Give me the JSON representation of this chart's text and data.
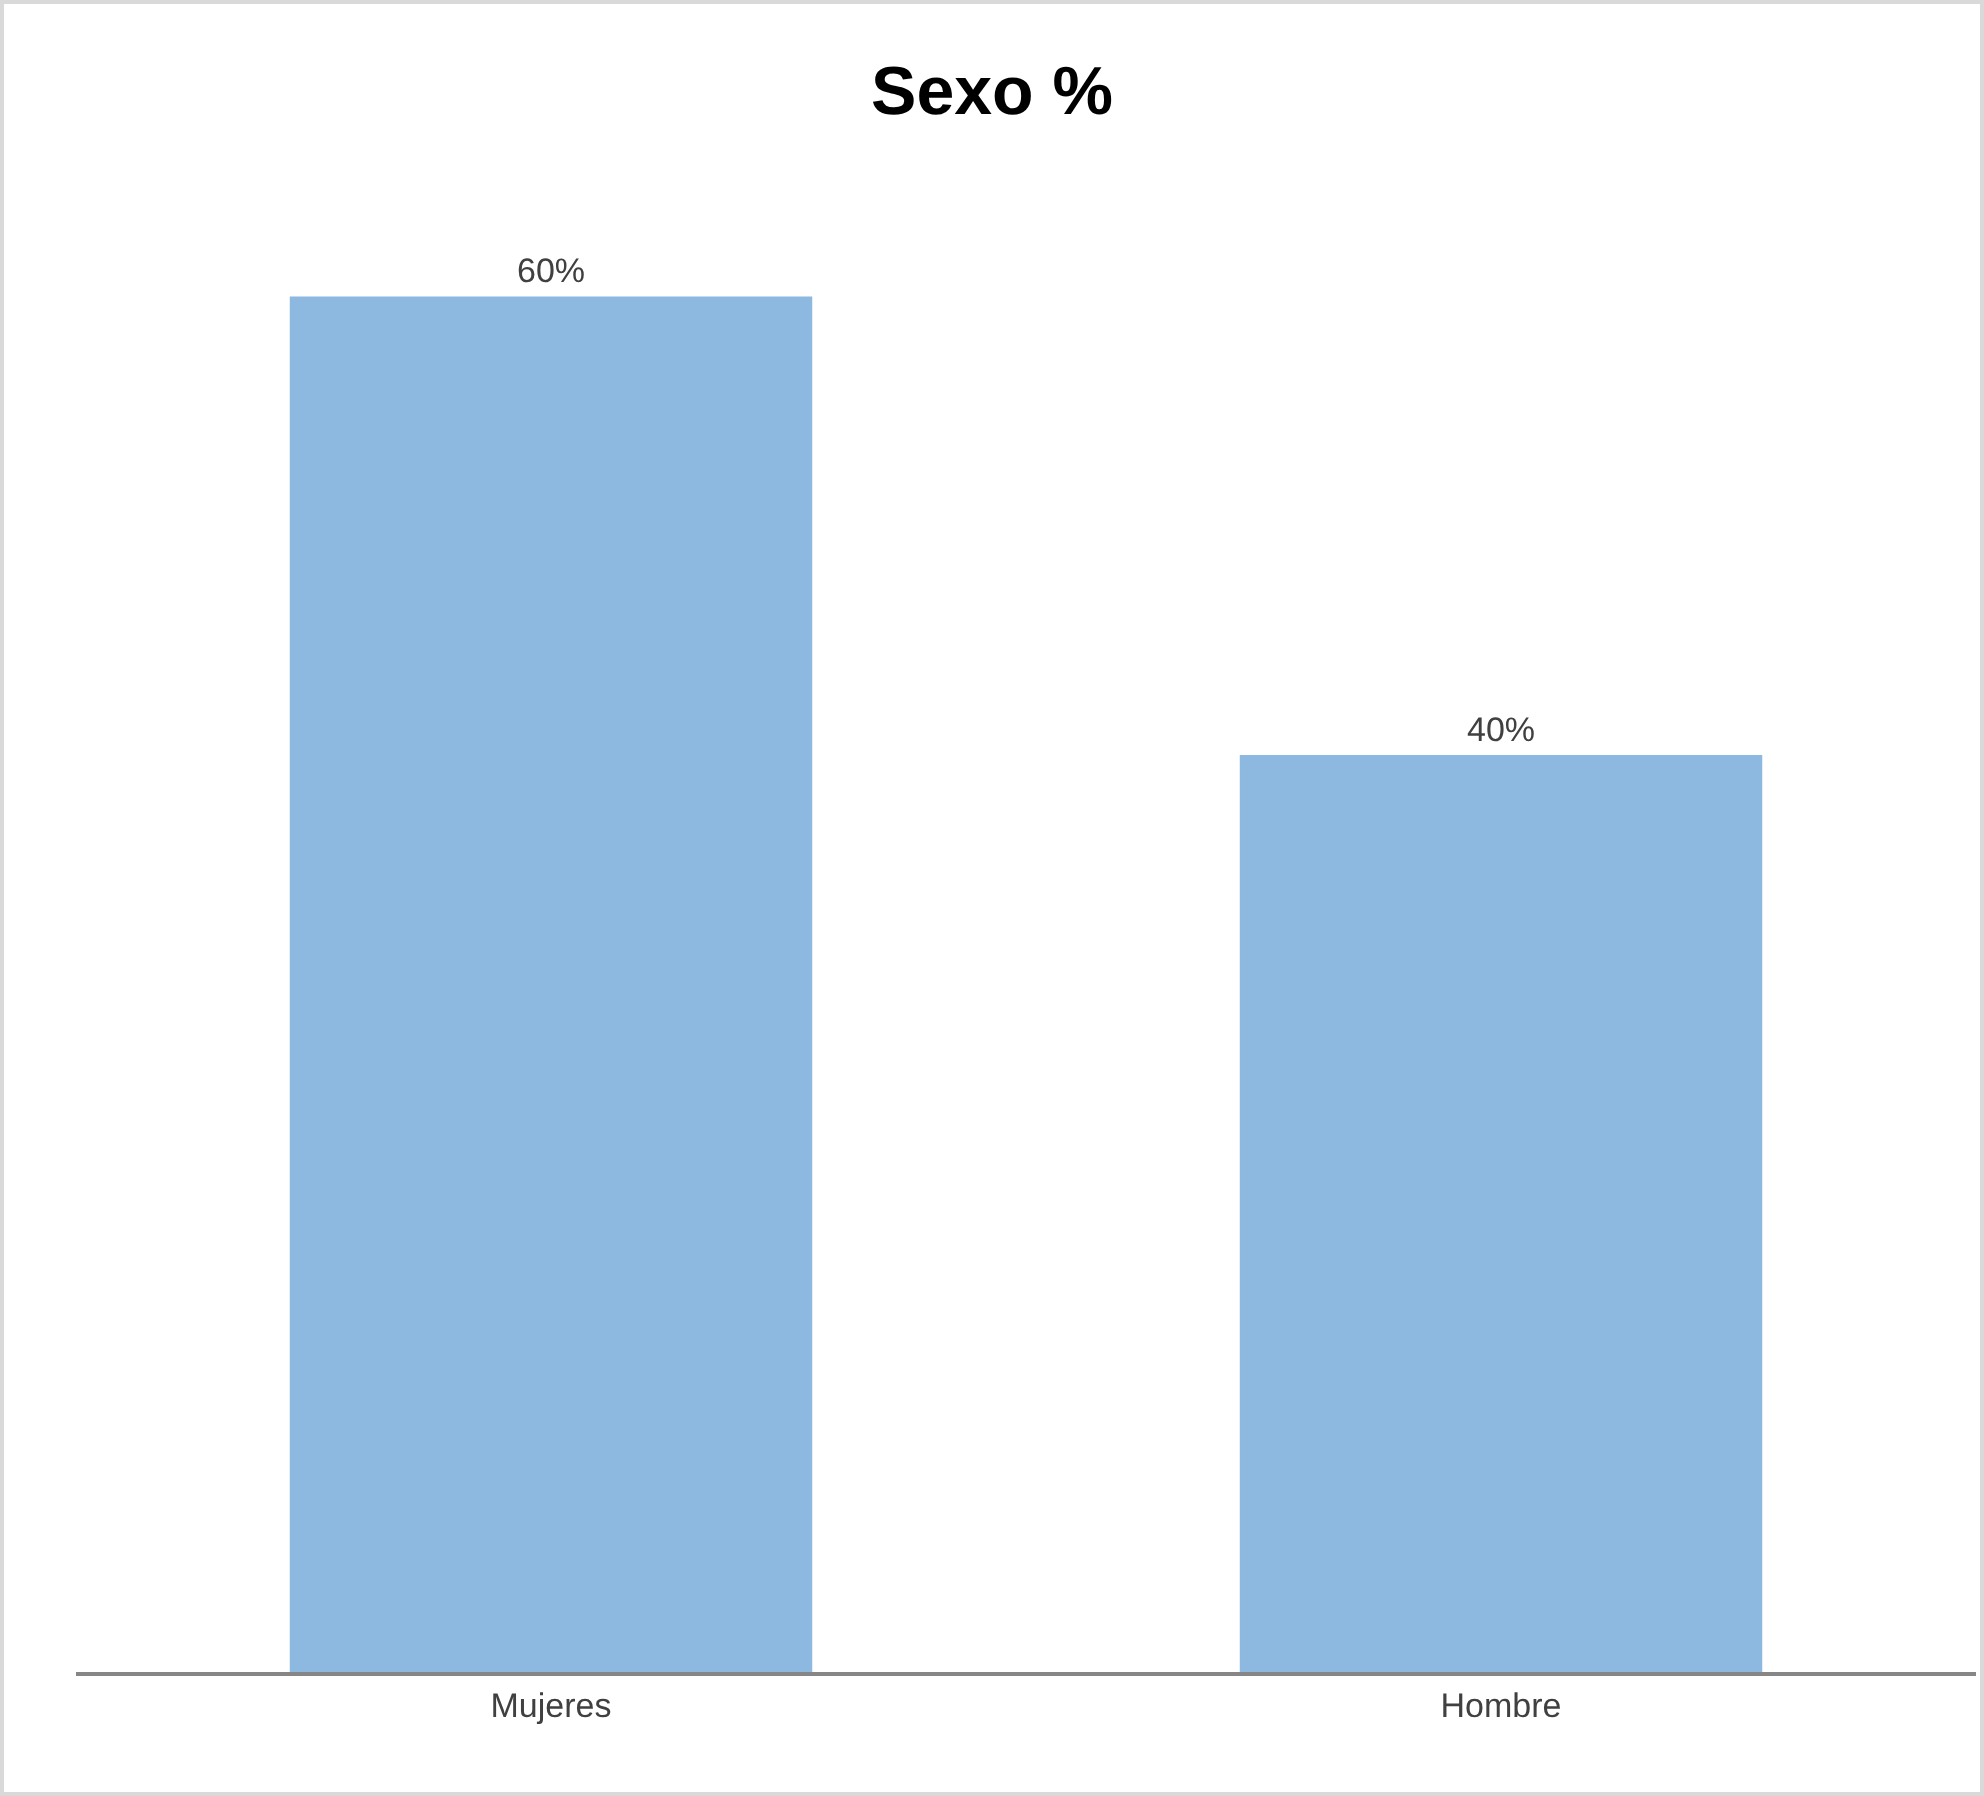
{
  "chart_data": {
    "type": "bar",
    "title": "Sexo %",
    "categories": [
      "Mujeres",
      "Hombre"
    ],
    "values": [
      60,
      40
    ],
    "value_labels": [
      "60%",
      "40%"
    ],
    "color": "#8db8e0",
    "grid": false,
    "legend": false
  }
}
